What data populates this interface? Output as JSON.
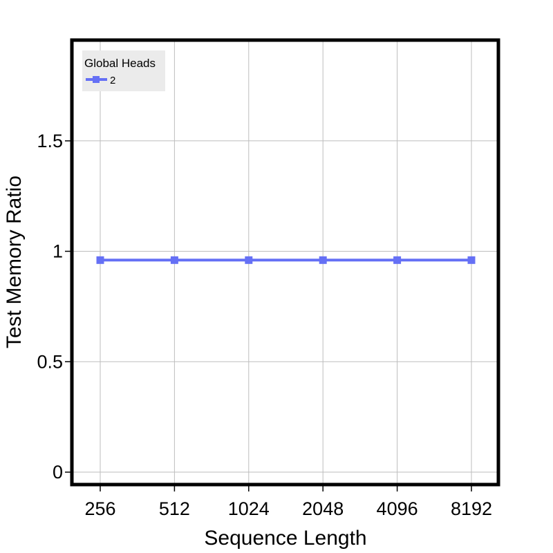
{
  "chart_data": {
    "type": "line",
    "xlabel": "Sequence Length",
    "ylabel": "Test Memory Ratio",
    "categories": [
      "256",
      "512",
      "1024",
      "2048",
      "4096",
      "8192"
    ],
    "ylim": [
      -0.05,
      1.95
    ],
    "yticks": [
      {
        "value": 0,
        "label": "0"
      },
      {
        "value": 0.5,
        "label": "0.5"
      },
      {
        "value": 1,
        "label": "1"
      },
      {
        "value": 1.5,
        "label": "1.5"
      }
    ],
    "grid": true,
    "legend": {
      "title": "Global Heads",
      "placement": "top-left"
    },
    "series": [
      {
        "name": "2",
        "color": "#6570f5",
        "marker": "square",
        "values": [
          0.96,
          0.96,
          0.96,
          0.96,
          0.96,
          0.96
        ]
      }
    ]
  }
}
